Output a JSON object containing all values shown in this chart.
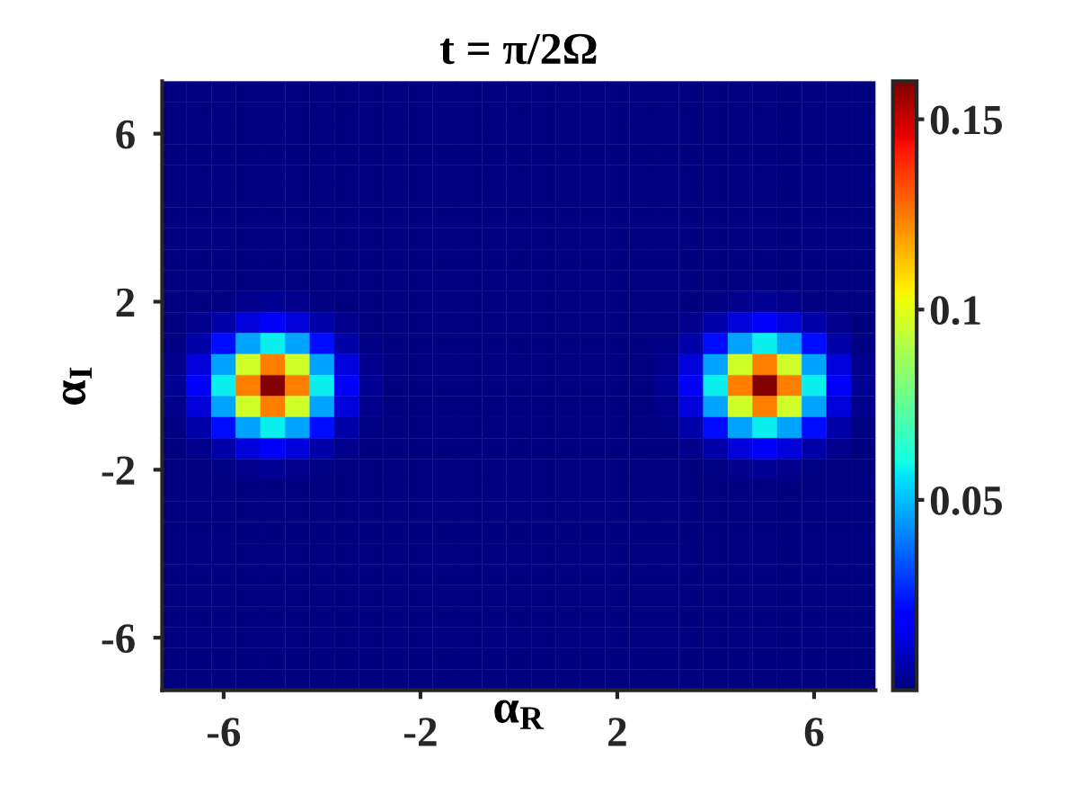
{
  "chart_data": {
    "type": "heatmap",
    "title": "t = π/2Ω",
    "xlabel": "α$_{R}$",
    "ylabel": "α$_{I}$",
    "x": [
      -7,
      -6.5,
      -6,
      -5.5,
      -5,
      -4.5,
      -4,
      -3.5,
      -3,
      -2.5,
      -2,
      -1.5,
      -1,
      -0.5,
      0,
      0.5,
      1,
      1.5,
      2,
      2.5,
      3,
      3.5,
      4,
      4.5,
      5,
      5.5,
      6,
      6.5,
      7
    ],
    "y": [
      7,
      6.5,
      6,
      5.5,
      5,
      4.5,
      4,
      3.5,
      3,
      2.5,
      2,
      1.5,
      1,
      0.5,
      0,
      -0.5,
      -1,
      -1.5,
      -2,
      -2.5,
      -3,
      -3.5,
      -4,
      -4.5,
      -5,
      -5.5,
      -6,
      -6.5,
      -7
    ],
    "cells": [
      [
        0,
        0,
        0,
        0,
        0,
        0,
        0,
        0,
        0,
        0,
        0,
        0,
        0,
        0,
        0,
        0,
        0,
        0,
        0,
        0,
        0,
        0,
        0,
        0,
        0,
        0,
        0,
        0,
        0
      ],
      [
        0,
        0,
        0,
        0,
        0,
        0,
        0,
        0,
        0,
        0,
        0,
        0,
        0,
        0,
        0,
        0,
        0,
        0,
        0,
        0,
        0,
        0,
        0,
        0,
        0,
        0,
        0,
        0,
        0
      ],
      [
        0,
        0,
        0,
        0,
        0,
        0,
        0,
        0,
        0,
        0,
        0,
        0,
        0,
        0,
        0,
        0,
        0,
        0,
        0,
        0,
        0,
        0,
        0,
        0,
        0,
        0,
        0,
        0,
        0
      ],
      [
        0,
        0,
        0,
        0,
        0,
        0,
        0,
        0,
        0,
        0,
        0,
        0,
        0,
        0,
        0,
        0,
        0,
        0,
        0,
        0,
        0,
        0,
        0,
        0,
        0,
        0,
        0,
        0,
        0
      ],
      [
        0,
        0,
        0,
        0,
        0,
        0,
        0,
        0,
        0,
        0,
        0,
        0,
        0,
        0,
        0,
        0,
        0,
        0,
        0,
        0,
        0,
        0,
        0,
        0,
        0,
        0,
        0,
        0,
        0
      ],
      [
        0,
        0,
        0,
        0,
        0,
        0,
        0,
        0,
        0,
        0,
        0,
        0,
        0,
        0,
        0,
        0,
        0,
        0,
        0,
        0,
        0,
        0,
        0,
        0,
        0,
        0,
        0,
        0,
        0
      ],
      [
        0,
        0,
        0,
        0,
        0,
        0,
        0,
        0,
        0,
        0,
        0,
        0,
        0,
        0,
        0,
        0,
        0,
        0,
        0,
        0,
        0,
        0,
        0,
        0,
        0,
        0,
        0,
        0,
        0
      ],
      [
        0,
        0,
        0,
        0,
        0,
        0,
        0,
        0,
        0,
        0,
        0,
        0,
        0,
        0,
        0,
        0,
        0,
        0,
        0,
        0,
        0,
        0,
        0,
        0,
        0,
        0,
        0,
        0,
        0
      ],
      [
        0,
        0,
        0,
        0,
        0,
        0,
        0,
        0,
        0,
        0,
        0,
        0,
        0,
        0,
        0,
        0,
        0,
        0,
        0,
        0,
        0,
        0,
        0,
        0,
        0,
        0,
        0,
        0,
        0
      ],
      [
        0,
        0,
        0,
        0,
        0,
        0,
        0,
        0,
        0,
        0,
        0,
        0,
        0,
        0,
        0,
        0,
        0,
        0,
        0,
        0,
        0,
        0,
        0,
        0,
        0,
        0,
        0,
        0,
        0
      ],
      [
        0,
        0,
        0.001,
        0.002,
        0.003,
        0.002,
        0.001,
        0,
        0,
        0,
        0,
        0,
        0,
        0,
        0,
        0,
        0,
        0,
        0,
        0,
        0,
        0,
        0.001,
        0.002,
        0.003,
        0.002,
        0.001,
        0,
        0
      ],
      [
        0,
        0.002,
        0.006,
        0.013,
        0.017,
        0.013,
        0.006,
        0.002,
        0,
        0,
        0,
        0,
        0,
        0,
        0,
        0,
        0,
        0,
        0,
        0,
        0,
        0.002,
        0.006,
        0.013,
        0.017,
        0.013,
        0.006,
        0.002,
        0
      ],
      [
        0.001,
        0.006,
        0.022,
        0.046,
        0.058,
        0.046,
        0.022,
        0.006,
        0.001,
        0,
        0,
        0,
        0,
        0,
        0,
        0,
        0,
        0,
        0,
        0,
        0.001,
        0.006,
        0.022,
        0.046,
        0.058,
        0.046,
        0.022,
        0.006,
        0.001
      ],
      [
        0.002,
        0.013,
        0.046,
        0.096,
        0.124,
        0.096,
        0.046,
        0.013,
        0.002,
        0,
        0,
        0,
        0,
        0,
        0,
        0,
        0,
        0,
        0,
        0,
        0.002,
        0.013,
        0.046,
        0.096,
        0.124,
        0.096,
        0.046,
        0.013,
        0.002
      ],
      [
        0.003,
        0.017,
        0.058,
        0.124,
        0.159,
        0.124,
        0.058,
        0.017,
        0.003,
        0,
        0,
        0,
        0,
        0,
        0,
        0,
        0,
        0,
        0,
        0,
        0.003,
        0.017,
        0.058,
        0.124,
        0.159,
        0.124,
        0.058,
        0.017,
        0.003
      ],
      [
        0.002,
        0.013,
        0.046,
        0.096,
        0.124,
        0.096,
        0.046,
        0.013,
        0.002,
        0,
        0,
        0,
        0,
        0,
        0,
        0,
        0,
        0,
        0,
        0,
        0.002,
        0.013,
        0.046,
        0.096,
        0.124,
        0.096,
        0.046,
        0.013,
        0.002
      ],
      [
        0.001,
        0.006,
        0.022,
        0.046,
        0.058,
        0.046,
        0.022,
        0.006,
        0.001,
        0,
        0,
        0,
        0,
        0,
        0,
        0,
        0,
        0,
        0,
        0,
        0.001,
        0.006,
        0.022,
        0.046,
        0.058,
        0.046,
        0.022,
        0.006,
        0.001
      ],
      [
        0,
        0.002,
        0.006,
        0.013,
        0.017,
        0.013,
        0.006,
        0.002,
        0,
        0,
        0,
        0,
        0,
        0,
        0,
        0,
        0,
        0,
        0,
        0,
        0,
        0.002,
        0.006,
        0.013,
        0.017,
        0.013,
        0.006,
        0.002,
        0
      ],
      [
        0,
        0,
        0.001,
        0.002,
        0.003,
        0.002,
        0.001,
        0,
        0,
        0,
        0,
        0,
        0,
        0,
        0,
        0,
        0,
        0,
        0,
        0,
        0,
        0,
        0.001,
        0.002,
        0.003,
        0.002,
        0.001,
        0,
        0
      ],
      [
        0,
        0,
        0,
        0,
        0,
        0,
        0,
        0,
        0,
        0,
        0,
        0,
        0,
        0,
        0,
        0,
        0,
        0,
        0,
        0,
        0,
        0,
        0,
        0,
        0,
        0,
        0,
        0,
        0
      ],
      [
        0,
        0,
        0,
        0,
        0,
        0,
        0,
        0,
        0,
        0,
        0,
        0,
        0,
        0,
        0,
        0,
        0,
        0,
        0,
        0,
        0,
        0,
        0,
        0,
        0,
        0,
        0,
        0,
        0
      ],
      [
        0,
        0,
        0,
        0,
        0,
        0,
        0,
        0,
        0,
        0,
        0,
        0,
        0,
        0,
        0,
        0,
        0,
        0,
        0,
        0,
        0,
        0,
        0,
        0,
        0,
        0,
        0,
        0,
        0
      ],
      [
        0,
        0,
        0,
        0,
        0,
        0,
        0,
        0,
        0,
        0,
        0,
        0,
        0,
        0,
        0,
        0,
        0,
        0,
        0,
        0,
        0,
        0,
        0,
        0,
        0,
        0,
        0,
        0,
        0
      ],
      [
        0,
        0,
        0,
        0,
        0,
        0,
        0,
        0,
        0,
        0,
        0,
        0,
        0,
        0,
        0,
        0,
        0,
        0,
        0,
        0,
        0,
        0,
        0,
        0,
        0,
        0,
        0,
        0,
        0
      ],
      [
        0,
        0,
        0,
        0,
        0,
        0,
        0,
        0,
        0,
        0,
        0,
        0,
        0,
        0,
        0,
        0,
        0,
        0,
        0,
        0,
        0,
        0,
        0,
        0,
        0,
        0,
        0,
        0,
        0
      ],
      [
        0,
        0,
        0,
        0,
        0,
        0,
        0,
        0,
        0,
        0,
        0,
        0,
        0,
        0,
        0,
        0,
        0,
        0,
        0,
        0,
        0,
        0,
        0,
        0,
        0,
        0,
        0,
        0,
        0
      ],
      [
        0,
        0,
        0,
        0,
        0,
        0,
        0,
        0,
        0,
        0,
        0,
        0,
        0,
        0,
        0,
        0,
        0,
        0,
        0,
        0,
        0,
        0,
        0,
        0,
        0,
        0,
        0,
        0,
        0
      ],
      [
        0,
        0,
        0,
        0,
        0,
        0,
        0,
        0,
        0,
        0,
        0,
        0,
        0,
        0,
        0,
        0,
        0,
        0,
        0,
        0,
        0,
        0,
        0,
        0,
        0,
        0,
        0,
        0,
        0
      ],
      [
        0,
        0,
        0,
        0,
        0,
        0,
        0,
        0,
        0,
        0,
        0,
        0,
        0,
        0,
        0,
        0,
        0,
        0,
        0,
        0,
        0,
        0,
        0,
        0,
        0,
        0,
        0,
        0,
        0
      ]
    ],
    "xlim": [
      -7.25,
      7.25
    ],
    "ylim": [
      -7.25,
      7.25
    ],
    "xticks": [
      {
        "value": -6,
        "label": "-6"
      },
      {
        "value": -2,
        "label": "-2"
      },
      2,
      6
    ],
    "yticks": [
      {
        "value": -6,
        "label": "-6"
      },
      {
        "value": -2,
        "label": "-2"
      },
      2,
      6
    ],
    "clim": [
      0,
      0.16
    ],
    "cticks": [
      0.05,
      0.1,
      0.15
    ],
    "grid": false
  }
}
